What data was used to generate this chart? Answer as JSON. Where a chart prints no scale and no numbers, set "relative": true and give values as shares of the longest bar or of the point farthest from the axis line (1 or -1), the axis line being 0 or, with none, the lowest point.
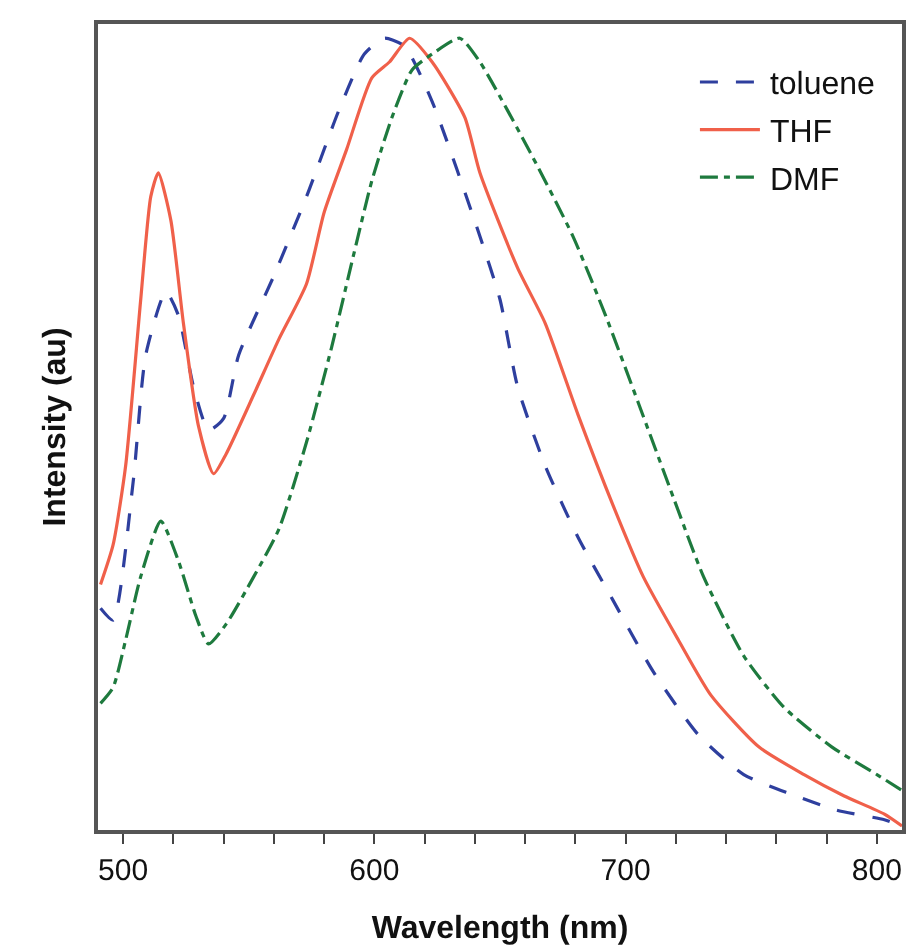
{
  "chart_data": {
    "type": "line",
    "xlabel": "Wavelength (nm)",
    "ylabel": "Intensity (au)",
    "relative": true,
    "xlim": [
      490,
      810
    ],
    "xticks": [
      500,
      {
        "value": 520,
        "label": null
      },
      {
        "value": 540,
        "label": null
      },
      {
        "value": 560,
        "label": null
      },
      {
        "value": 580,
        "label": null
      },
      600,
      {
        "value": 620,
        "label": null
      },
      {
        "value": 640,
        "label": null
      },
      {
        "value": 660,
        "label": null
      },
      {
        "value": 680,
        "label": null
      },
      700,
      {
        "value": 720,
        "label": null
      },
      {
        "value": 740,
        "label": null
      },
      {
        "value": 760,
        "label": null
      },
      {
        "value": 780,
        "label": null
      },
      800
    ],
    "legend": "top right",
    "series": [
      {
        "name": "toluene",
        "color": "#2e3f9e",
        "line_style": "dashed",
        "x": [
          491,
          496,
          504,
          509,
          517,
          522,
          528,
          534,
          540,
          546,
          560,
          573,
          586,
          596,
          604,
          612,
          623,
          642,
          650,
          657,
          668,
          681,
          695,
          711,
          729,
          747,
          766,
          784,
          803,
          810
        ],
        "values": [
          0.28,
          0.265,
          0.44,
          0.6,
          0.68,
          0.65,
          0.56,
          0.505,
          0.52,
          0.6,
          0.7,
          0.8,
          0.91,
          0.98,
          1.0,
          0.99,
          0.92,
          0.75,
          0.67,
          0.56,
          0.46,
          0.37,
          0.29,
          0.2,
          0.12,
          0.07,
          0.045,
          0.025,
          0.013,
          0.005
        ]
      },
      {
        "name": "THF",
        "color": "#f0604a",
        "line_style": "solid",
        "x": [
          491,
          496,
          501,
          507,
          511,
          514,
          519,
          524,
          530,
          536,
          541,
          552,
          562,
          573,
          580,
          589,
          599,
          606,
          614,
          623,
          636,
          642,
          657,
          668,
          681,
          695,
          707,
          721,
          734,
          753,
          771,
          787,
          803,
          810
        ],
        "values": [
          0.31,
          0.36,
          0.46,
          0.67,
          0.8,
          0.83,
          0.77,
          0.64,
          0.51,
          0.45,
          0.475,
          0.55,
          0.62,
          0.69,
          0.78,
          0.86,
          0.95,
          0.97,
          1.0,
          0.97,
          0.9,
          0.83,
          0.71,
          0.64,
          0.525,
          0.41,
          0.32,
          0.24,
          0.17,
          0.105,
          0.07,
          0.043,
          0.02,
          0.005
        ]
      },
      {
        "name": "DMF",
        "color": "#1e7a3e",
        "line_style": "dashdot",
        "x": [
          491,
          496,
          501,
          507,
          515,
          522,
          529,
          534,
          541,
          552,
          562,
          573,
          583,
          592,
          599,
          607,
          615,
          623,
          634,
          642,
          663,
          679,
          692,
          705,
          719,
          731,
          747,
          763,
          782,
          800,
          810
        ],
        "values": [
          0.16,
          0.18,
          0.24,
          0.32,
          0.39,
          0.34,
          0.27,
          0.235,
          0.26,
          0.32,
          0.38,
          0.49,
          0.61,
          0.73,
          0.82,
          0.9,
          0.96,
          0.98,
          1.0,
          0.97,
          0.85,
          0.75,
          0.65,
          0.54,
          0.42,
          0.32,
          0.22,
          0.155,
          0.105,
          0.07,
          0.05
        ]
      }
    ]
  }
}
